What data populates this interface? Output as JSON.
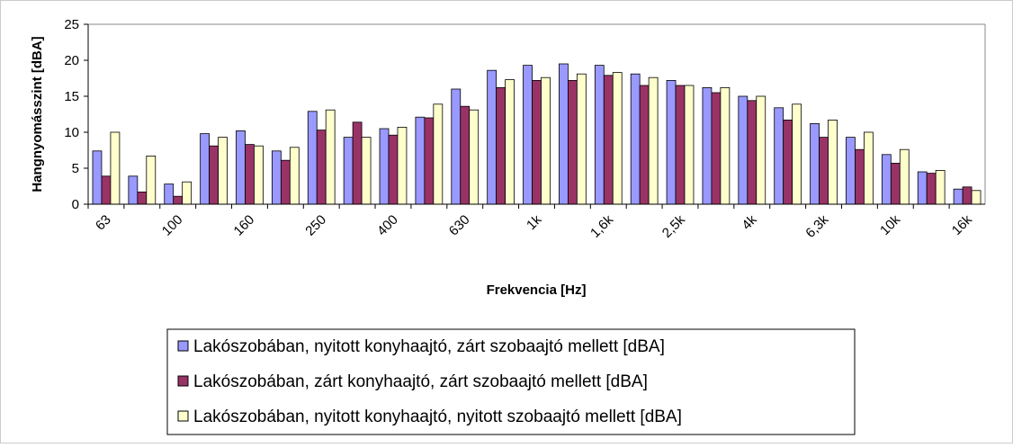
{
  "chart_data": {
    "type": "bar",
    "x_label": "Frekvencia [Hz]",
    "y_label": "Hangnyomásszint [dBA]",
    "categories": [
      "63",
      null,
      "100",
      null,
      "160",
      null,
      "250",
      null,
      "400",
      null,
      "630",
      null,
      "1k",
      null,
      "1,6k",
      null,
      "2,5k",
      null,
      "4k",
      null,
      "6,3k",
      null,
      "10k",
      null,
      "16k"
    ],
    "series": [
      {
        "name": "Lakószobában, nyitott konyhaajtó, zárt szobaajtó mellett [dBA]",
        "color": "#9999ff",
        "values": [
          7.4,
          3.9,
          2.8,
          9.8,
          10.2,
          7.4,
          12.9,
          9.3,
          10.5,
          12.1,
          16.0,
          18.6,
          19.3,
          19.5,
          19.3,
          18.1,
          17.2,
          16.2,
          15.0,
          13.4,
          11.2,
          9.3,
          6.9,
          4.5,
          2.1
        ]
      },
      {
        "name": "Lakószobában, zárt konyhaajtó, zárt szobaajtó mellett [dBA]",
        "color": "#993366",
        "values": [
          3.9,
          1.7,
          1.1,
          8.1,
          8.3,
          6.1,
          10.3,
          11.4,
          9.6,
          12.0,
          13.6,
          16.2,
          17.2,
          17.2,
          17.9,
          16.5,
          16.5,
          15.5,
          14.4,
          11.7,
          9.3,
          7.6,
          5.7,
          4.3,
          2.4
        ]
      },
      {
        "name": "Lakószobában, nyitott konyhaajtó, nyitott szobaajtó mellett [dBA]",
        "color": "#ffffcc",
        "values": [
          10.0,
          6.7,
          3.1,
          9.3,
          8.1,
          7.9,
          13.1,
          9.3,
          10.7,
          13.9,
          13.1,
          17.3,
          17.6,
          18.1,
          18.3,
          17.6,
          16.5,
          16.2,
          15.0,
          13.9,
          11.7,
          10.0,
          7.6,
          4.7,
          1.9
        ]
      }
    ],
    "ylim": [
      0,
      25
    ],
    "yticks": [
      0,
      5,
      10,
      15,
      20,
      25
    ],
    "grid": false
  }
}
